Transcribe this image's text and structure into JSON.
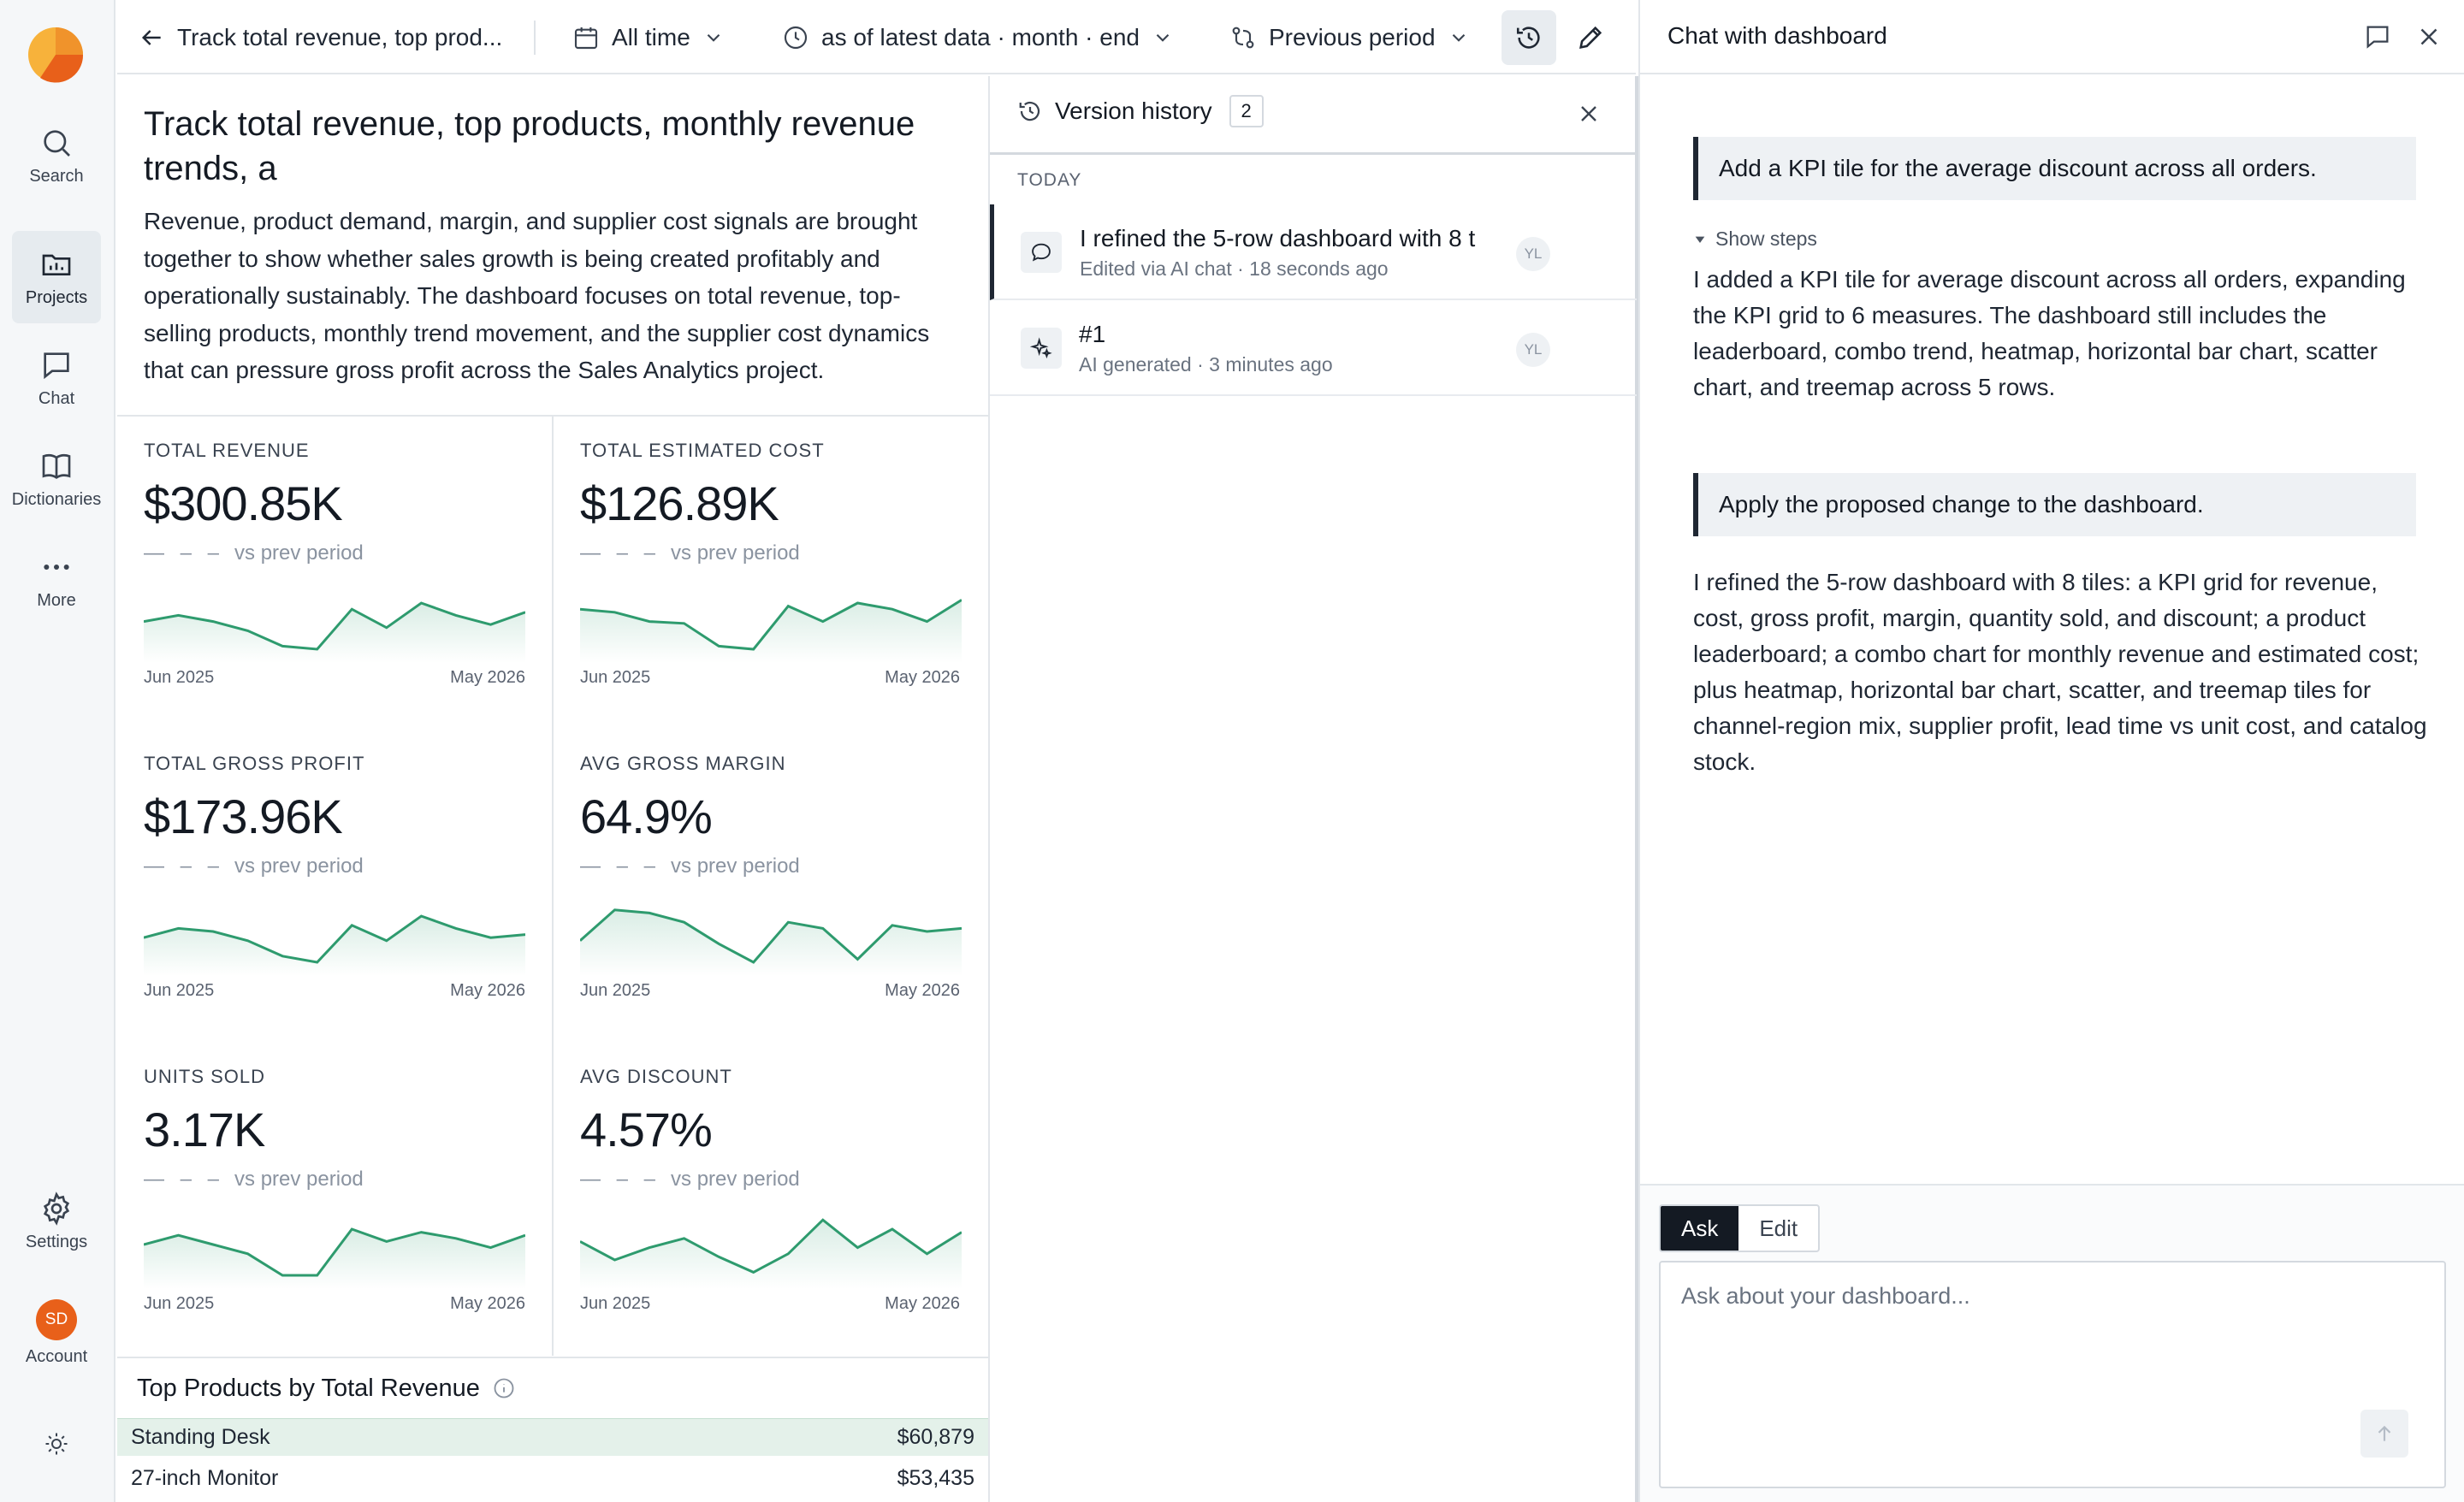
{
  "nav": {
    "items": [
      {
        "label": "Search",
        "icon": "search-icon"
      },
      {
        "label": "Projects",
        "icon": "folder-icon",
        "active": true
      },
      {
        "label": "Chat",
        "icon": "chat-icon"
      },
      {
        "label": "Dictionaries",
        "icon": "book-icon"
      },
      {
        "label": "More",
        "icon": "more-icon"
      }
    ],
    "settings_label": "Settings",
    "account_initials": "SD",
    "account_label": "Account"
  },
  "topbar": {
    "back_title": "Track total revenue, top prod...",
    "time_range": "All time",
    "as_of": "as of latest data · month · end",
    "comparison": "Previous period"
  },
  "dashboard": {
    "title": "Track total revenue, top products, monthly revenue trends, a",
    "description": "Revenue, product demand, margin, and supplier cost signals are brought together to show whether sales growth is being created profitably and operationally sustainably. The dashboard focuses on total revenue, top-selling products, monthly trend movement, and the supplier cost dynamics that can pressure gross profit across the Sales Analytics project.",
    "kpis": [
      {
        "label": "TOTAL REVENUE",
        "value": "$300.85K",
        "compare": "vs prev period",
        "start": "Jun 2025",
        "end": "May 2026",
        "spark": [
          0.45,
          0.55,
          0.45,
          0.3,
          0.05,
          0.0,
          0.65,
          0.35,
          0.75,
          0.55,
          0.4,
          0.6
        ]
      },
      {
        "label": "TOTAL ESTIMATED COST",
        "value": "$126.89K",
        "compare": "vs prev period",
        "start": "Jun 2025",
        "end": "May 2026",
        "spark": [
          0.65,
          0.6,
          0.45,
          0.42,
          0.05,
          0.0,
          0.7,
          0.45,
          0.75,
          0.65,
          0.45,
          0.8
        ]
      },
      {
        "label": "TOTAL GROSS PROFIT",
        "value": "$173.96K",
        "compare": "vs prev period",
        "start": "Jun 2025",
        "end": "May 2026",
        "spark": [
          0.4,
          0.55,
          0.5,
          0.35,
          0.1,
          0.0,
          0.6,
          0.35,
          0.75,
          0.55,
          0.4,
          0.45
        ]
      },
      {
        "label": "AVG GROSS MARGIN",
        "value": "64.9%",
        "compare": "vs prev period",
        "start": "Jun 2025",
        "end": "May 2026",
        "spark": [
          0.35,
          0.85,
          0.8,
          0.65,
          0.3,
          0.0,
          0.65,
          0.55,
          0.05,
          0.6,
          0.5,
          0.55
        ]
      },
      {
        "label": "UNITS SOLD",
        "value": "3.17K",
        "compare": "vs prev period",
        "start": "Jun 2025",
        "end": "May 2026",
        "spark": [
          0.5,
          0.65,
          0.5,
          0.35,
          0.0,
          0.0,
          0.75,
          0.55,
          0.7,
          0.6,
          0.45,
          0.65
        ]
      },
      {
        "label": "AVG DISCOUNT",
        "value": "4.57%",
        "compare": "vs prev period",
        "start": "Jun 2025",
        "end": "May 2026",
        "spark": [
          0.55,
          0.25,
          0.45,
          0.6,
          0.3,
          0.05,
          0.35,
          0.9,
          0.45,
          0.75,
          0.35,
          0.7
        ]
      }
    ],
    "top_products": {
      "title": "Top Products by Total Revenue",
      "rows": [
        {
          "name": "Standing Desk",
          "value": "$60,879"
        },
        {
          "name": "27-inch Monitor",
          "value": "$53,435"
        }
      ]
    }
  },
  "version_history": {
    "title": "Version history",
    "count": "2",
    "section": "TODAY",
    "entries": [
      {
        "title": "I refined the 5-row dashboard with 8 t",
        "sub": "Edited via AI chat · 18 seconds ago",
        "user": "YL",
        "icon": "chat-bubble-icon"
      },
      {
        "title": "#1",
        "sub": "AI generated · 3 minutes ago",
        "user": "YL",
        "icon": "sparkle-icon"
      }
    ]
  },
  "chat": {
    "title": "Chat with dashboard",
    "user_msg_1": "Add a KPI tile for the average discount across all orders.",
    "show_steps": "Show steps",
    "reply_1": "I added a KPI tile for average discount across all orders, expanding the KPI grid to 6 measures. The dashboard still includes the leaderboard, combo trend, heatmap, horizontal bar chart, scatter chart, and treemap across 5 rows.",
    "user_msg_2": "Apply the proposed change to the dashboard.",
    "reply_2": "I refined the 5-row dashboard with 8 tiles: a KPI grid for revenue, cost, gross profit, margin, quantity sold, and discount; a product leaderboard; a combo chart for monthly revenue and estimated cost; plus heatmap, horizontal bar chart, scatter, and treemap tiles for channel-region mix, supplier profit, lead time vs unit cost, and catalog stock.",
    "mode_ask": "Ask",
    "mode_edit": "Edit",
    "input_placeholder": "Ask about your dashboard..."
  },
  "colors": {
    "accent": "#2e9b6e",
    "accent_fill": "#e4f1ea",
    "logo_orange": "#f0932b",
    "avatar": "#e8601a"
  }
}
